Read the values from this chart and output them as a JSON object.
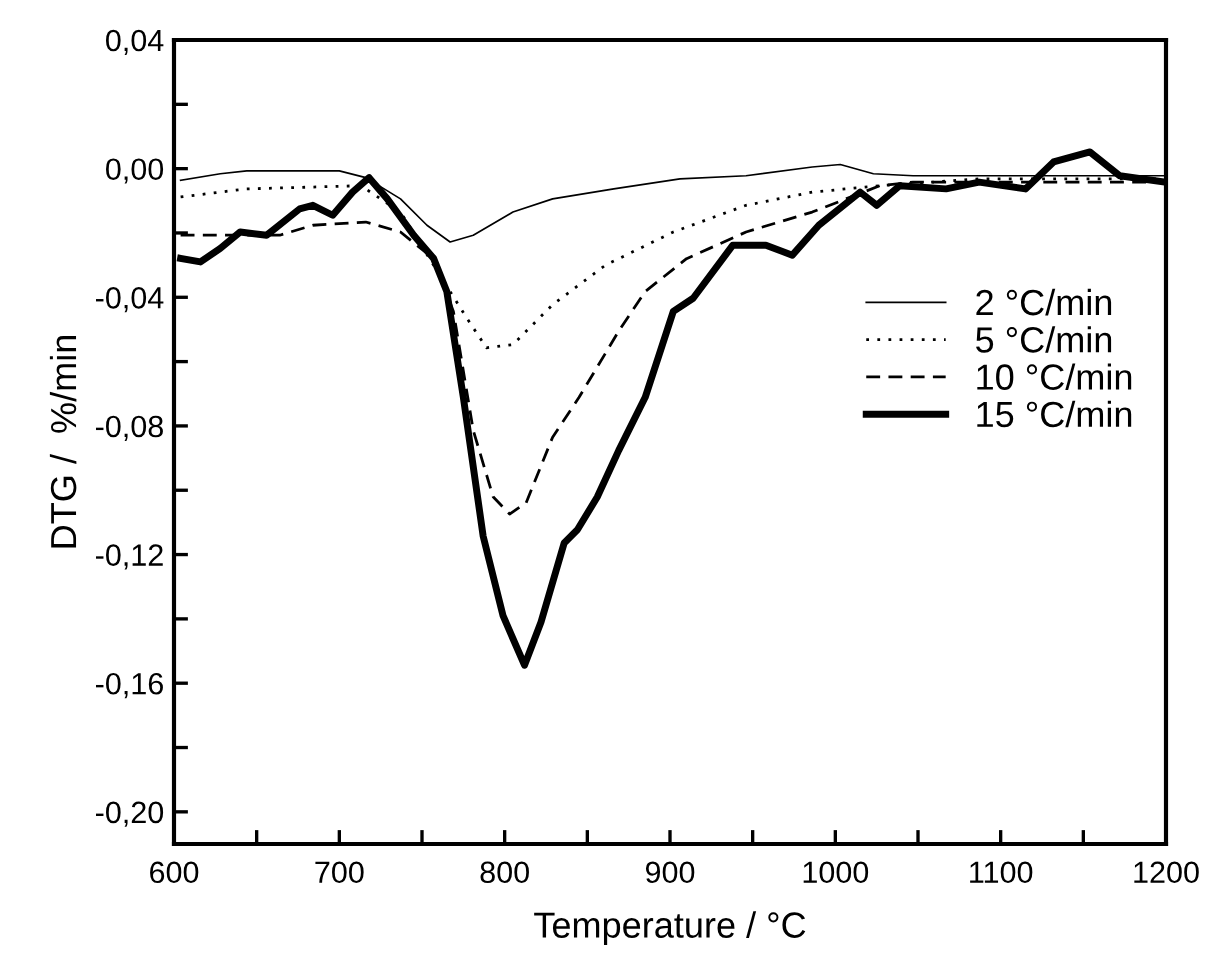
{
  "chart_data": {
    "type": "line",
    "xlabel": "Temperature / °C",
    "ylabel": "DTG /  %/min",
    "xlim": [
      600,
      1200
    ],
    "ylim": [
      -0.21,
      0.04
    ],
    "xticks": [
      600,
      {
        "value": 650,
        "label": null
      },
      700,
      {
        "value": 750,
        "label": null
      },
      800,
      {
        "value": 850,
        "label": null
      },
      900,
      {
        "value": 950,
        "label": null
      },
      1000,
      {
        "value": 1050,
        "label": null
      },
      1100,
      {
        "value": 1150,
        "label": null
      },
      1200
    ],
    "yticks": [
      {
        "value": -0.2,
        "label": "-0,20"
      },
      {
        "value": -0.18,
        "label": null
      },
      {
        "value": -0.16,
        "label": "-0,16"
      },
      {
        "value": -0.14,
        "label": null
      },
      {
        "value": -0.12,
        "label": "-0,12"
      },
      {
        "value": -0.1,
        "label": null
      },
      {
        "value": -0.08,
        "label": "-0,08"
      },
      {
        "value": -0.06,
        "label": null
      },
      {
        "value": -0.04,
        "label": "-0,04"
      },
      {
        "value": -0.02,
        "label": null
      },
      {
        "value": 0.0,
        "label": "0,00"
      },
      {
        "value": 0.02,
        "label": null
      },
      {
        "value": 0.04,
        "label": "0,04"
      }
    ],
    "grid": false,
    "legend": "right",
    "marker": "none",
    "series": [
      {
        "name": "2 °C/min",
        "color": "#000000",
        "line_style": "solid",
        "x": [
          604,
          628,
          644,
          700,
          716,
          737,
          753,
          767,
          781,
          805,
          829,
          866,
          906,
          946,
          986,
          1003,
          1023,
          1047,
          1200
        ],
        "values": [
          -0.0036,
          -0.0016,
          -0.0007,
          -0.0007,
          -0.0028,
          -0.0094,
          -0.0176,
          -0.0228,
          -0.0207,
          -0.0135,
          -0.0094,
          -0.0063,
          -0.0032,
          -0.0022,
          0.0005,
          0.0013,
          -0.0016,
          -0.0022,
          -0.0022
        ]
      },
      {
        "name": "5 °C/min",
        "color": "#000000",
        "line_style": "dotted",
        "x": [
          604,
          644,
          713,
          737,
          757,
          777,
          789,
          805,
          829,
          861,
          902,
          946,
          986,
          1027,
          1087,
          1200
        ],
        "values": [
          -0.0088,
          -0.0063,
          -0.0053,
          -0.0135,
          -0.03,
          -0.0464,
          -0.0557,
          -0.0547,
          -0.0423,
          -0.03,
          -0.0197,
          -0.0114,
          -0.0073,
          -0.0053,
          -0.0032,
          -0.0032
        ]
      },
      {
        "name": "10 °C/min",
        "color": "#000000",
        "line_style": "dashed",
        "x": [
          604,
          664,
          684,
          716,
          737,
          757,
          769,
          781,
          793,
          803,
          813,
          829,
          845,
          869,
          885,
          910,
          946,
          986,
          1027,
          1047,
          1200
        ],
        "values": [
          -0.0207,
          -0.0207,
          -0.0176,
          -0.0166,
          -0.0197,
          -0.028,
          -0.0444,
          -0.0814,
          -0.102,
          -0.1074,
          -0.1039,
          -0.0835,
          -0.0711,
          -0.0505,
          -0.0382,
          -0.028,
          -0.0197,
          -0.0135,
          -0.0053,
          -0.0042,
          -0.0042
        ]
      },
      {
        "name": "15 °C/min",
        "color": "#000000",
        "line_style": "solid",
        "x": [
          604,
          616,
          628,
          640,
          656,
          676,
          684,
          696,
          708,
          718,
          729,
          745,
          757,
          765,
          775,
          787,
          799,
          812,
          822,
          836,
          844,
          856,
          869,
          885,
          902,
          914,
          938,
          958,
          974,
          990,
          1015,
          1025,
          1039,
          1067,
          1087,
          1115,
          1132,
          1154,
          1172,
          1200
        ],
        "values": [
          -0.0279,
          -0.029,
          -0.0248,
          -0.0197,
          -0.0207,
          -0.0125,
          -0.0114,
          -0.0145,
          -0.0073,
          -0.0028,
          -0.0094,
          -0.0207,
          -0.0279,
          -0.0382,
          -0.0711,
          -0.1143,
          -0.139,
          -0.1544,
          -0.141,
          -0.1164,
          -0.1123,
          -0.1021,
          -0.0876,
          -0.0711,
          -0.0444,
          -0.0403,
          -0.0238,
          -0.0238,
          -0.0269,
          -0.0176,
          -0.0073,
          -0.0114,
          -0.0053,
          -0.0063,
          -0.0042,
          -0.0063,
          0.0021,
          0.0052,
          -0.0022,
          -0.0042
        ]
      }
    ]
  }
}
